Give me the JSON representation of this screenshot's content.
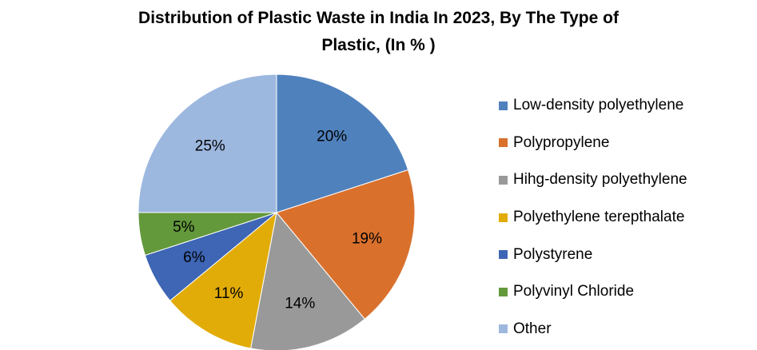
{
  "title_line1": "Distribution of Plastic Waste in India In 2023, By The Type of",
  "title_line2": "Plastic, (In % )",
  "chart_data": {
    "type": "pie",
    "title": "Distribution of Plastic Waste in India In 2023, By The Type of Plastic, (In % )",
    "legend_position": "right",
    "start_angle": "12 o'clock, clockwise",
    "slices": [
      {
        "label": "Low-density polyethylene",
        "value": 20,
        "data_label": "20%",
        "color": "#4F81BD"
      },
      {
        "label": "Polypropylene",
        "value": 19,
        "data_label": "19%",
        "color": "#D9712D"
      },
      {
        "label": "Hihg-density polyethylene",
        "value": 14,
        "data_label": "14%",
        "color": "#999999"
      },
      {
        "label": "Polyethylene terepthalate",
        "value": 11,
        "data_label": "11%",
        "color": "#E2AC08"
      },
      {
        "label": "Polystyrene",
        "value": 6,
        "data_label": "6%",
        "color": "#3E66B5"
      },
      {
        "label": "Polyvinyl Chloride",
        "value": 5,
        "data_label": "5%",
        "color": "#63993B"
      },
      {
        "label": "Other",
        "value": 25,
        "data_label": "25%",
        "color": "#9DB8DF"
      }
    ]
  }
}
